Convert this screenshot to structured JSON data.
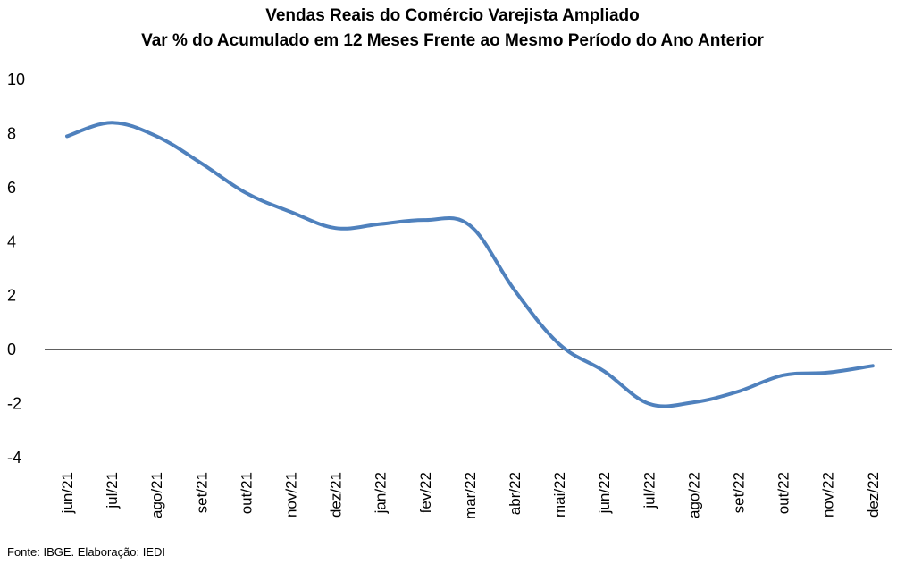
{
  "chart_data": {
    "type": "line",
    "title": "Vendas Reais do Comércio Varejista Ampliado",
    "subtitle": "Var % do Acumulado em 12 Meses Frente ao Mesmo Período do Ano Anterior",
    "xlabel": "",
    "ylabel": "",
    "categories": [
      "jun/21",
      "jul/21",
      "ago/21",
      "set/21",
      "out/21",
      "nov/21",
      "dez/21",
      "jan/22",
      "fev/22",
      "mar/22",
      "abr/22",
      "mai/22",
      "jun/22",
      "jul/22",
      "ago/22",
      "set/22",
      "out/22",
      "nov/22",
      "dez/22"
    ],
    "series": [
      {
        "values": [
          7.9,
          8.4,
          7.9,
          6.9,
          5.8,
          5.1,
          4.5,
          4.65,
          4.8,
          4.6,
          2.2,
          0.2,
          -0.8,
          -2.0,
          -1.95,
          -1.55,
          -0.95,
          -0.85,
          -0.6
        ],
        "color": "#4f81bd"
      }
    ],
    "ylim": [
      -4,
      10
    ],
    "yticks": [
      10,
      8,
      6,
      4,
      2,
      0,
      -2,
      -4
    ],
    "grid": false,
    "legend": "none"
  },
  "source": "Fonte: IBGE. Elaboração: IEDI"
}
